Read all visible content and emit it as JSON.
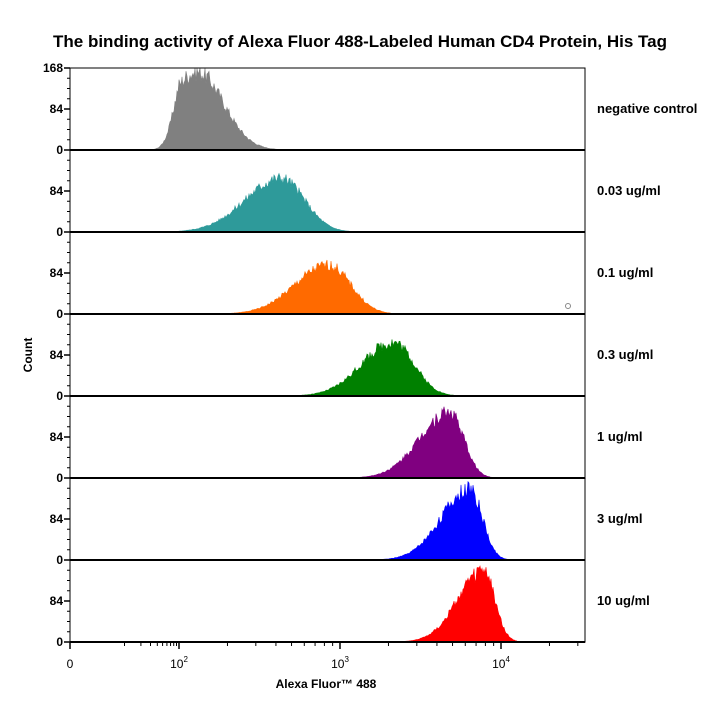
{
  "chart_data": {
    "type": "area",
    "title": "The binding activity of Alexa Fluor 488-Labeled Human CD4 Protein, His Tag",
    "xlabel": "Alexa Fluor™ 488",
    "ylabel": "Count",
    "x_scale": "biexponential",
    "x_tick_labels": [
      "0",
      "10^2",
      "10^3",
      "10^4"
    ],
    "y_tick_labels_first_panel": [
      "168",
      "84",
      "0"
    ],
    "y_tick_labels": [
      "84",
      "0"
    ],
    "ylim": [
      0,
      168
    ],
    "grid": false,
    "legend": "none",
    "series": [
      {
        "name": "negative control",
        "color": "#808080",
        "peak_x": 130,
        "width": 0.17,
        "skew": 0.1,
        "peak_count": 160
      },
      {
        "name": "0.03 ug/ml",
        "color": "#2e9a9a",
        "peak_x": 430,
        "width": 0.17,
        "skew": 0.3,
        "peak_count": 110
      },
      {
        "name": "0.1 ug/ml",
        "color": "#ff6a00",
        "peak_x": 850,
        "width": 0.16,
        "skew": 0.3,
        "peak_count": 100
      },
      {
        "name": "0.3 ug/ml",
        "color": "#008000",
        "peak_x": 2150,
        "width": 0.15,
        "skew": 0.3,
        "peak_count": 110
      },
      {
        "name": "1 ug/ml",
        "color": "#800080",
        "peak_x": 4800,
        "width": 0.12,
        "skew": 0.55,
        "peak_count": 135
      },
      {
        "name": "3 ug/ml",
        "color": "#0000ff",
        "peak_x": 6400,
        "width": 0.11,
        "skew": 0.6,
        "peak_count": 145
      },
      {
        "name": "10 ug/ml",
        "color": "#ff0000",
        "peak_x": 7800,
        "width": 0.1,
        "skew": 0.6,
        "peak_count": 145
      }
    ]
  }
}
